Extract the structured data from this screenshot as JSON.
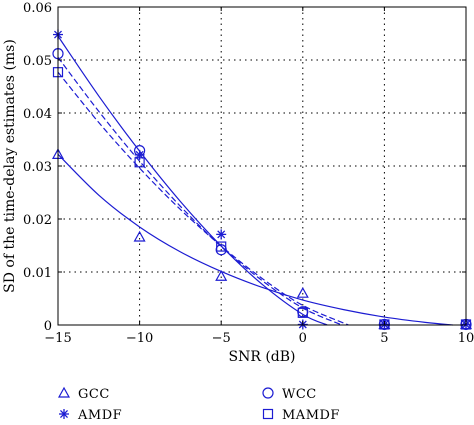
{
  "chart_data": {
    "type": "line",
    "xlabel": "SNR (dB)",
    "ylabel": "SD of the time-delay estimates (ms)",
    "xlim": [
      -15,
      10
    ],
    "ylim": [
      0,
      0.06
    ],
    "xticks": [
      -15,
      -10,
      -5,
      0,
      5,
      10
    ],
    "xtick_labels": [
      "−15",
      "−10",
      "−5",
      "0",
      "5",
      "10"
    ],
    "yticks": [
      0,
      0.01,
      0.02,
      0.03,
      0.04,
      0.05,
      0.06
    ],
    "ytick_labels": [
      "0",
      "0.01",
      "0.02",
      "0.03",
      "0.04",
      "0.05",
      "0.06"
    ],
    "grid": "dotted",
    "legend_position": "below",
    "color": "#1c1cd2",
    "series": [
      {
        "name": "GCC",
        "marker": "triangle",
        "line": "solid",
        "x": [
          -15,
          -10,
          -5,
          0,
          5,
          10
        ],
        "y": [
          0.0322,
          0.0166,
          0.0092,
          0.006,
          0.0001,
          0.0001
        ],
        "fit_x": [
          -15,
          -12.5,
          -10,
          -7.5,
          -5,
          -2.5,
          0,
          2.5,
          5,
          7.5,
          9.2
        ],
        "fit_y": [
          0.0322,
          0.0245,
          0.0185,
          0.0138,
          0.0101,
          0.0071,
          0.0047,
          0.0029,
          0.0015,
          0.0005,
          0
        ]
      },
      {
        "name": "WCC",
        "marker": "circle",
        "line": "solid",
        "x": [
          -15,
          -10,
          -5,
          0,
          5,
          10
        ],
        "y": [
          0.0512,
          0.0329,
          0.0142,
          0.0025,
          0.0001,
          0.0001
        ],
        "fit_x": [
          -15,
          -12.5,
          -10,
          -7.5,
          -5,
          -2.5,
          0,
          1.5
        ],
        "fit_y": [
          0.0545,
          0.0432,
          0.0328,
          0.0233,
          0.0149,
          0.0077,
          0.002,
          0
        ]
      },
      {
        "name": "AMDF",
        "marker": "star",
        "line": "dashed",
        "x": [
          -15,
          -10,
          -5,
          0,
          5,
          10
        ],
        "y": [
          0.0548,
          0.0321,
          0.0171,
          0.0001,
          0.0001,
          0.0001
        ],
        "fit_x": [
          -15,
          -12.5,
          -10,
          -7.5,
          -5,
          -2.5,
          0,
          2.4
        ],
        "fit_y": [
          0.0505,
          0.0403,
          0.0309,
          0.0224,
          0.0148,
          0.0084,
          0.0032,
          0
        ]
      },
      {
        "name": "MAMDF",
        "marker": "square",
        "line": "dashed",
        "x": [
          -15,
          -10,
          -5,
          0,
          5,
          10
        ],
        "y": [
          0.0477,
          0.0307,
          0.0148,
          0.0023,
          0.0001,
          0.0001
        ],
        "fit_x": [
          -15,
          -12.5,
          -10,
          -7.5,
          -5,
          -2.5,
          0,
          2.8
        ],
        "fit_y": [
          0.0477,
          0.0382,
          0.0296,
          0.0218,
          0.0149,
          0.0088,
          0.0037,
          0
        ]
      }
    ]
  }
}
